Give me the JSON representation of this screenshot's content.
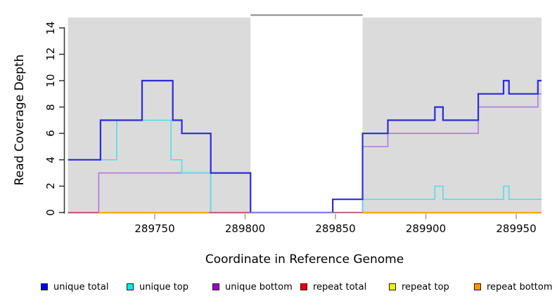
{
  "chart_data": {
    "type": "line",
    "variant": "step",
    "title": "",
    "xlabel": "Coordinate in Reference Genome",
    "ylabel": "Read Coverage Depth",
    "x_ticks": [
      "289750",
      "289800",
      "289850",
      "289900",
      "289950"
    ],
    "x_tick_values": [
      289750,
      289800,
      289850,
      289900,
      289950
    ],
    "y_ticks": [
      "0",
      "2",
      "4",
      "6",
      "8",
      "10",
      "12",
      "14"
    ],
    "y_tick_values": [
      0,
      2,
      4,
      6,
      8,
      10,
      12,
      14
    ],
    "xlim": [
      289702,
      289964
    ],
    "ylim": [
      0,
      15
    ],
    "grid": false,
    "panel_bg": "#DBDBDB",
    "gap_region": {
      "x1": 289803,
      "x2": 289865,
      "fill": "#FFFFFF",
      "top_border": "#8A8A8A"
    },
    "series": [
      {
        "name": "unique total",
        "color": "#2B2BDF",
        "width": 2.2,
        "steps": [
          [
            289702,
            4
          ],
          [
            289720,
            7
          ],
          [
            289743,
            10
          ],
          [
            289760,
            7
          ],
          [
            289765,
            6
          ],
          [
            289781,
            3
          ],
          [
            289803,
            0
          ],
          [
            289848.5,
            1
          ],
          [
            289865,
            6
          ],
          [
            289879,
            7
          ],
          [
            289905,
            8
          ],
          [
            289909.5,
            7
          ],
          [
            289929,
            9
          ],
          [
            289943,
            10
          ],
          [
            289946,
            9
          ],
          [
            289962,
            10
          ],
          [
            289964,
            10
          ]
        ]
      },
      {
        "name": "unique top",
        "color": "#55DDEE",
        "width": 1.6,
        "steps": [
          [
            289702,
            4
          ],
          [
            289729,
            7
          ],
          [
            289759,
            4
          ],
          [
            289765,
            3
          ],
          [
            289781,
            0
          ],
          [
            289865,
            1
          ],
          [
            289905,
            2
          ],
          [
            289909.5,
            1
          ],
          [
            289943,
            2
          ],
          [
            289946,
            1
          ],
          [
            289964,
            1
          ]
        ]
      },
      {
        "name": "unique bottom",
        "color": "#B077DE",
        "width": 1.6,
        "steps": [
          [
            289702,
            0
          ],
          [
            289719,
            3
          ],
          [
            289781,
            0
          ],
          [
            289865,
            5
          ],
          [
            289879,
            6
          ],
          [
            289929,
            8
          ],
          [
            289962,
            9
          ],
          [
            289964,
            9
          ]
        ]
      },
      {
        "name": "repeat total",
        "color": "#E03A3A",
        "width": 1.6,
        "steps": [
          [
            289702,
            0
          ],
          [
            289964,
            0
          ]
        ]
      },
      {
        "name": "repeat top",
        "color": "#F2F200",
        "width": 1.6,
        "steps": [
          [
            289702,
            0
          ],
          [
            289964,
            0
          ]
        ]
      },
      {
        "name": "repeat bottom",
        "color": "#FFA41E",
        "width": 1.6,
        "steps": [
          [
            289702,
            0
          ],
          [
            289964,
            0
          ]
        ]
      }
    ],
    "zero_line_segments": [
      {
        "x1": 289702,
        "x2": 289719,
        "color": "#C9597F"
      },
      {
        "x1": 289719,
        "x2": 289780,
        "color": "#FFA41E"
      },
      {
        "x1": 289780,
        "x2": 289803,
        "color": "#C9597F"
      },
      {
        "x1": 289803,
        "x2": 289848.5,
        "color": "#958FE8"
      },
      {
        "x1": 289848.5,
        "x2": 289865,
        "color": "#C9597F"
      },
      {
        "x1": 289865,
        "x2": 289964,
        "color": "#FFA41E"
      }
    ],
    "legend_position": "bottom"
  },
  "legend": {
    "items": [
      {
        "label": "unique total",
        "color": "#0000F0"
      },
      {
        "label": "unique top",
        "color": "#00E8F0"
      },
      {
        "label": "unique bottom",
        "color": "#9C00D4"
      },
      {
        "label": "repeat total",
        "color": "#E60000"
      },
      {
        "label": "repeat top",
        "color": "#F2F200"
      },
      {
        "label": "repeat bottom",
        "color": "#F59800"
      }
    ]
  }
}
